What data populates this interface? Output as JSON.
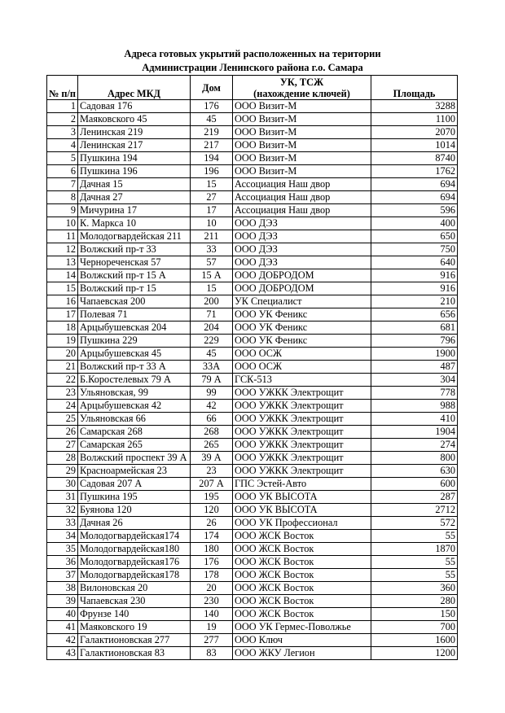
{
  "title": {
    "line1": "Адреса готовых укрытий расположенных на територии",
    "line2": "Администрации Ленинского района г.о. Самара"
  },
  "headers": {
    "num": "№ п/п",
    "address": "Адрес МКД",
    "house": "Дом",
    "uk_line1": "УК, ТСЖ",
    "uk_line2": "(нахождение ключей)",
    "area": "Площадь"
  },
  "rows": [
    [
      "1",
      "Садовая 176",
      "176",
      "ООО Визит-М",
      "3288"
    ],
    [
      "2",
      "Маяковского 45",
      "45",
      "ООО Визит-М",
      "1100"
    ],
    [
      "3",
      "Ленинская 219",
      "219",
      "ООО Визит-М",
      "2070"
    ],
    [
      "4",
      "Ленинская 217",
      "217",
      "ООО Визит-М",
      "1014"
    ],
    [
      "5",
      "Пушкина 194",
      "194",
      "ООО Визит-М",
      "8740"
    ],
    [
      "6",
      "Пушкина 196",
      "196",
      "ООО Визит-М",
      "1762"
    ],
    [
      "7",
      "Дачная 15",
      "15",
      "Ассоциация Наш двор",
      "694"
    ],
    [
      "8",
      "Дачная 27",
      "27",
      "Ассоциация Наш двор",
      "694"
    ],
    [
      "9",
      "Мичурина 17",
      "17",
      "Ассоциация Наш двор",
      "596"
    ],
    [
      "10",
      "К. Маркса 10",
      "10",
      "ООО ДЭЗ",
      "400"
    ],
    [
      "11",
      "Молодогвардейская 211",
      "211",
      "ООО ДЭЗ",
      "650"
    ],
    [
      "12",
      "Волжский пр-т 33",
      "33",
      "ООО ДЭЗ",
      "750"
    ],
    [
      "13",
      "Чернореченская 57",
      "57",
      "ООО ДЭЗ",
      "640"
    ],
    [
      "14",
      "Волжский пр-т 15 А",
      "15 А",
      "ООО ДОБРОДОМ",
      "916"
    ],
    [
      "15",
      "Волжский пр-т 15",
      "15",
      "ООО ДОБРОДОМ",
      "916"
    ],
    [
      "16",
      "Чапаевская 200",
      "200",
      "УК Специалист",
      "210"
    ],
    [
      "17",
      "Полевая 71",
      "71",
      "ООО УК Феникс",
      "656"
    ],
    [
      "18",
      "Арцыбушевская 204",
      "204",
      "ООО УК Феникс",
      "681"
    ],
    [
      "19",
      "Пушкина 229",
      "229",
      "ООО УК Феникс",
      "796"
    ],
    [
      "20",
      "Арцыбушевская 45",
      "45",
      "ООО ОСЖ",
      "1900"
    ],
    [
      "21",
      "Волжский пр-т 33 А",
      "33А",
      "ООО ОСЖ",
      "487"
    ],
    [
      "22",
      "Б.Коростелевых 79 А",
      "79 А",
      "ГСК-513",
      "304"
    ],
    [
      "23",
      "Ульяновская, 99",
      "99",
      "ООО УЖКК Электрощит",
      "778"
    ],
    [
      "24",
      "Арцыбушевская 42",
      "42",
      "ООО УЖКК Электрощит",
      "988"
    ],
    [
      "25",
      "Ульяновская 66",
      "66",
      "ООО УЖКК Электрощит",
      "410"
    ],
    [
      "26",
      "Самарская 268",
      "268",
      "ООО УЖКК Электрощит",
      "1904"
    ],
    [
      "27",
      "Самарская 265",
      "265",
      "ООО УЖКК Электрощит",
      "274"
    ],
    [
      "28",
      "Волжский проспект 39 А",
      "39 А",
      "ООО УЖКК Электрощит",
      "800"
    ],
    [
      "29",
      "Красноармейская 23",
      "23",
      "ООО УЖКК Электрощит",
      "630"
    ],
    [
      "30",
      "Садовая 207 А",
      "207 А",
      "ГПС Эстей-Авто",
      "600"
    ],
    [
      "31",
      "Пушкина 195",
      "195",
      "ООО УК ВЫСОТА",
      "287"
    ],
    [
      "32",
      "Буянова 120",
      "120",
      "ООО УК ВЫСОТА",
      "2712"
    ],
    [
      "33",
      "Дачная 26",
      "26",
      "ООО УК Профессионал",
      "572"
    ],
    [
      "34",
      "Молодогвардейская174",
      "174",
      "ООО ЖСК Восток",
      "55"
    ],
    [
      "35",
      "Молодогвардейская180",
      "180",
      "ООО ЖСК Восток",
      "1870"
    ],
    [
      "36",
      "Молодогвардейская176",
      "176",
      "ООО ЖСК Восток",
      "55"
    ],
    [
      "37",
      "Молодогвардейская178",
      "178",
      "ООО ЖСК Восток",
      "55"
    ],
    [
      "38",
      "Вилоновская 20",
      "20",
      "ООО ЖСК Восток",
      "360"
    ],
    [
      "39",
      "Чапаевская 230",
      "230",
      "ООО ЖСК Восток",
      "280"
    ],
    [
      "40",
      "Фрунзе 140",
      "140",
      "ООО ЖСК Восток",
      "150"
    ],
    [
      "41",
      "Маяковского 19",
      "19",
      "ООО УК Гермес-Поволжье",
      "700"
    ],
    [
      "42",
      "Галактионовская 277",
      "277",
      "ООО Ключ",
      "1600"
    ],
    [
      "43",
      "Галактионовская 83",
      "83",
      "ООО ЖКУ Легион",
      "1200"
    ]
  ]
}
